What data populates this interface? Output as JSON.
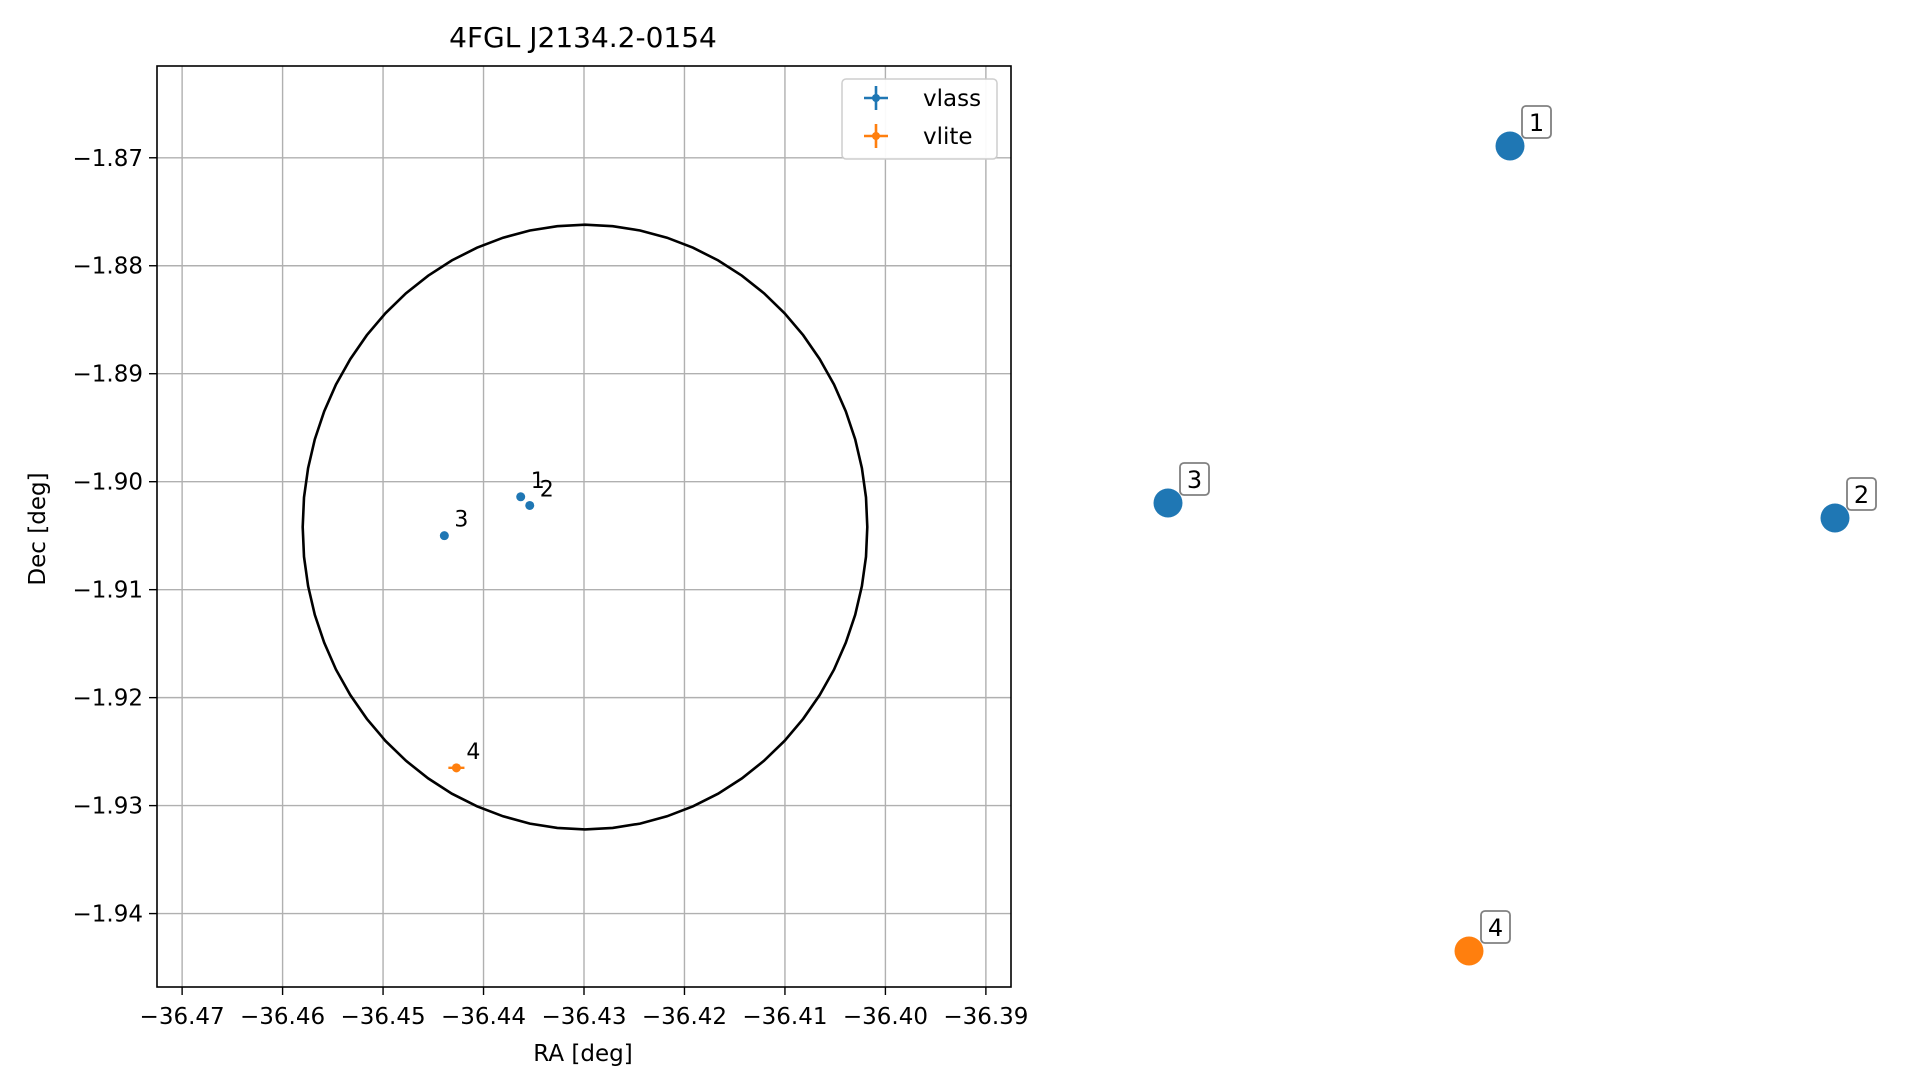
{
  "chart_data": [
    {
      "type": "scatter",
      "title": "4FGL J2134.2-0154",
      "xlabel": "RA [deg]",
      "ylabel": "Dec [deg]",
      "xlim": [
        -36.4725,
        -36.3875
      ],
      "ylim": [
        -1.9468,
        -1.8615
      ],
      "xticks": [
        -36.47,
        -36.46,
        -36.45,
        -36.44,
        -36.43,
        -36.42,
        -36.41,
        -36.4,
        -36.39
      ],
      "xtick_labels": [
        "−36.47",
        "−36.46",
        "−36.45",
        "−36.44",
        "−36.43",
        "−36.42",
        "−36.41",
        "−36.40",
        "−36.39"
      ],
      "yticks": [
        -1.87,
        -1.88,
        -1.89,
        -1.9,
        -1.91,
        -1.92,
        -1.93,
        -1.94
      ],
      "ytick_labels": [
        "−1.87",
        "−1.88",
        "−1.89",
        "−1.90",
        "−1.91",
        "−1.92",
        "−1.93",
        "−1.94"
      ],
      "grid": true,
      "legend_position": "top-right",
      "circle": {
        "center_ra": -36.4299,
        "center_dec": -1.9042,
        "radius_ra": 0.0281,
        "radius_dec": 0.028,
        "color": "#000000"
      },
      "series": [
        {
          "name": "vlass",
          "color": "#1f77b4",
          "points": [
            {
              "label": "1",
              "ra": -36.4363,
              "dec": -1.9014
            },
            {
              "label": "2",
              "ra": -36.4354,
              "dec": -1.9022
            },
            {
              "label": "3",
              "ra": -36.4439,
              "dec": -1.905
            }
          ]
        },
        {
          "name": "vlite",
          "color": "#ff7f0e",
          "points": [
            {
              "label": "4",
              "ra": -36.4427,
              "dec": -1.9265,
              "ra_err": 0.0008,
              "dec_err": 0.0004
            }
          ]
        }
      ]
    },
    {
      "type": "scatter",
      "title": "",
      "axes_visible": false,
      "points": [
        {
          "label": "1",
          "color": "#1f77b4"
        },
        {
          "label": "2",
          "color": "#1f77b4"
        },
        {
          "label": "3",
          "color": "#1f77b4"
        },
        {
          "label": "4",
          "color": "#ff7f0e"
        }
      ]
    }
  ]
}
